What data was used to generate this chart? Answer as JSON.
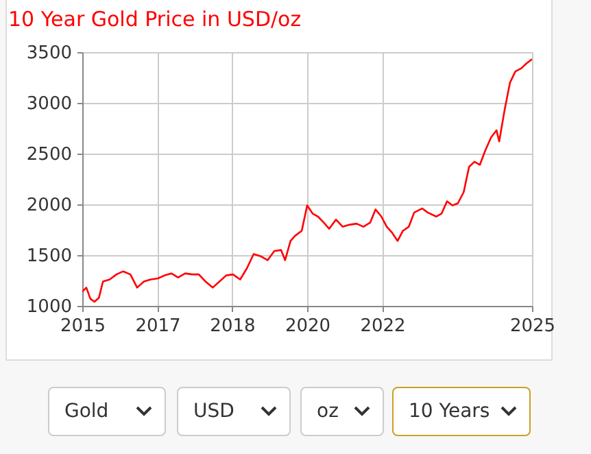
{
  "chart_data": {
    "type": "line",
    "title": "10 Year Gold Price in USD/oz",
    "x": [
      2015,
      2015.09,
      2015.18,
      2015.27,
      2015.37,
      2015.46,
      2015.61,
      2015.76,
      2015.91,
      2016.07,
      2016.22,
      2016.37,
      2016.52,
      2016.68,
      2016.83,
      2016.98,
      2017.13,
      2017.29,
      2017.44,
      2017.59,
      2017.74,
      2017.9,
      2018.05,
      2018.2,
      2018.35,
      2018.51,
      2018.66,
      2018.81,
      2018.96,
      2019.12,
      2019.27,
      2019.42,
      2019.51,
      2019.63,
      2019.73,
      2019.88,
      2020,
      2020.12,
      2020.24,
      2020.37,
      2020.49,
      2020.64,
      2020.79,
      2020.95,
      2021.1,
      2021.25,
      2021.4,
      2021.52,
      2021.65,
      2021.77,
      2021.89,
      2022.01,
      2022.13,
      2022.26,
      2022.38,
      2022.56,
      2022.68,
      2022.87,
      2022.99,
      2023.11,
      2023.23,
      2023.35,
      2023.48,
      2023.6,
      2023.72,
      2023.84,
      2023.96,
      2024.09,
      2024.21,
      2024.27,
      2024.39,
      2024.51,
      2024.63,
      2024.76,
      2024.88,
      2025
    ],
    "series": [
      {
        "color": "#ff0000",
        "values": [
          1140,
          1180,
          1070,
          1040,
          1080,
          1240,
          1260,
          1310,
          1340,
          1310,
          1180,
          1240,
          1260,
          1270,
          1300,
          1320,
          1280,
          1320,
          1310,
          1310,
          1240,
          1180,
          1240,
          1300,
          1310,
          1260,
          1370,
          1510,
          1490,
          1450,
          1540,
          1550,
          1450,
          1640,
          1690,
          1740,
          1990,
          1910,
          1880,
          1820,
          1760,
          1850,
          1780,
          1800,
          1810,
          1780,
          1820,
          1950,
          1880,
          1780,
          1720,
          1640,
          1740,
          1780,
          1920,
          1960,
          1920,
          1880,
          1910,
          2030,
          1990,
          2010,
          2120,
          2370,
          2420,
          2390,
          2530,
          2660,
          2730,
          2620,
          2930,
          3200,
          3310,
          3340,
          3390,
          3430
        ]
      }
    ],
    "xlim": [
      2015,
      2025
    ],
    "xticks": [
      2015,
      {
        "value": 2016.67,
        "label": "2017"
      },
      {
        "value": 2018.33,
        "label": "2018"
      },
      2020,
      {
        "value": 2021.67,
        "label": "2022"
      },
      2025
    ],
    "ylim": [
      1000,
      3500
    ],
    "yticks": [
      1000,
      1500,
      2000,
      2500,
      3000,
      3500
    ],
    "grid": true,
    "marker": "none",
    "line_style": "solid",
    "annotations": [
      "Gold",
      "USD",
      "oz",
      "10 Years"
    ]
  }
}
